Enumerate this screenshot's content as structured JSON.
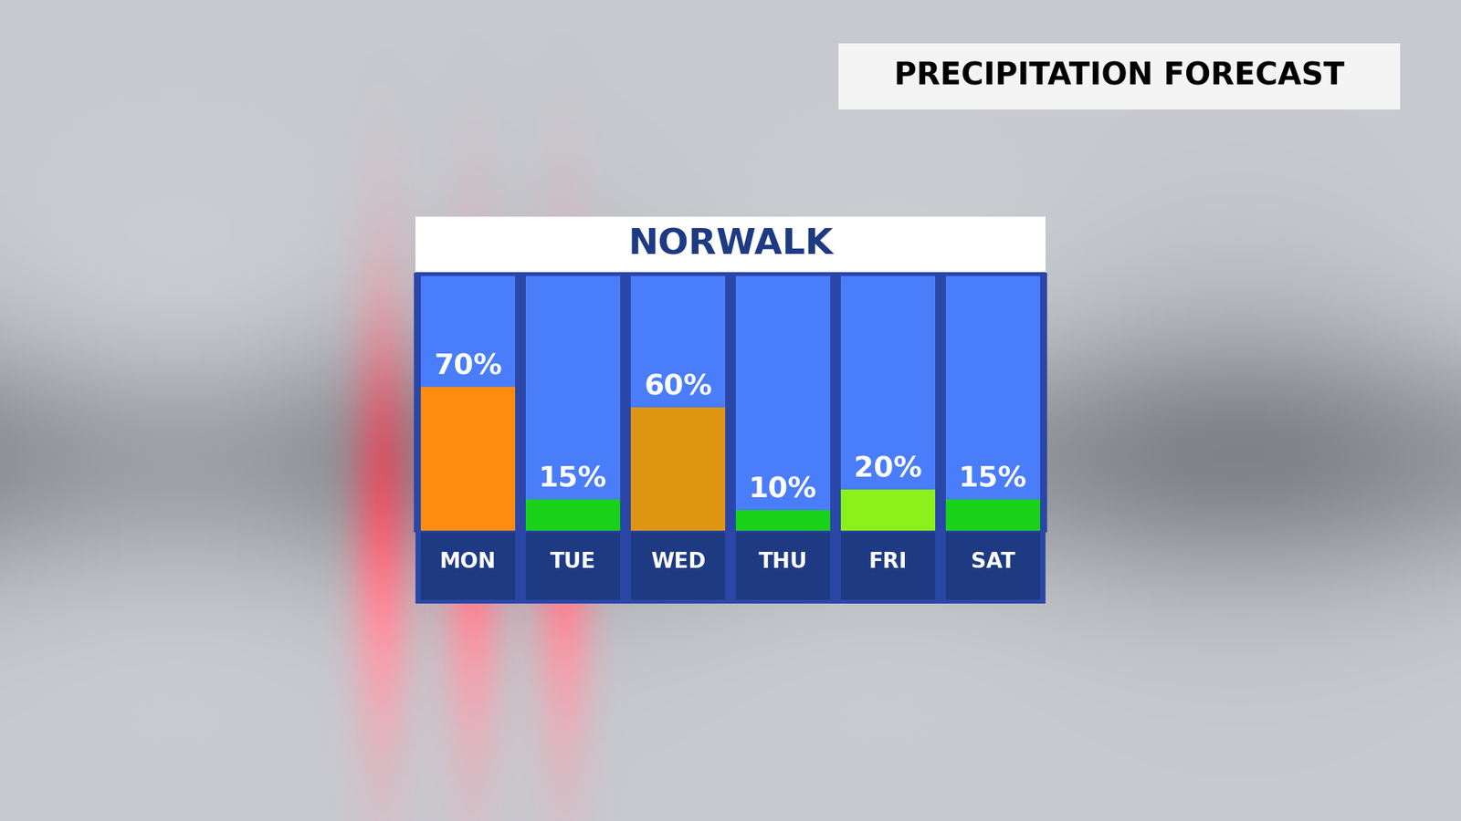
{
  "chart_data": {
    "type": "bar",
    "title": "NORWALK",
    "subtitle": "PRECIPITATION FORECAST",
    "categories": [
      "MON",
      "TUE",
      "WED",
      "THU",
      "FRI",
      "SAT"
    ],
    "values": [
      70,
      15,
      60,
      10,
      20,
      15
    ],
    "value_labels": [
      "70%",
      "15%",
      "60%",
      "10%",
      "20%",
      "15%"
    ],
    "colors": [
      "#ff8c0f",
      "#19d119",
      "#de9612",
      "#19d119",
      "#8cf01a",
      "#19d119"
    ],
    "ylim": [
      0,
      125
    ],
    "yticks": [],
    "grid": false,
    "data_labels": true,
    "tick_labels": "x"
  }
}
